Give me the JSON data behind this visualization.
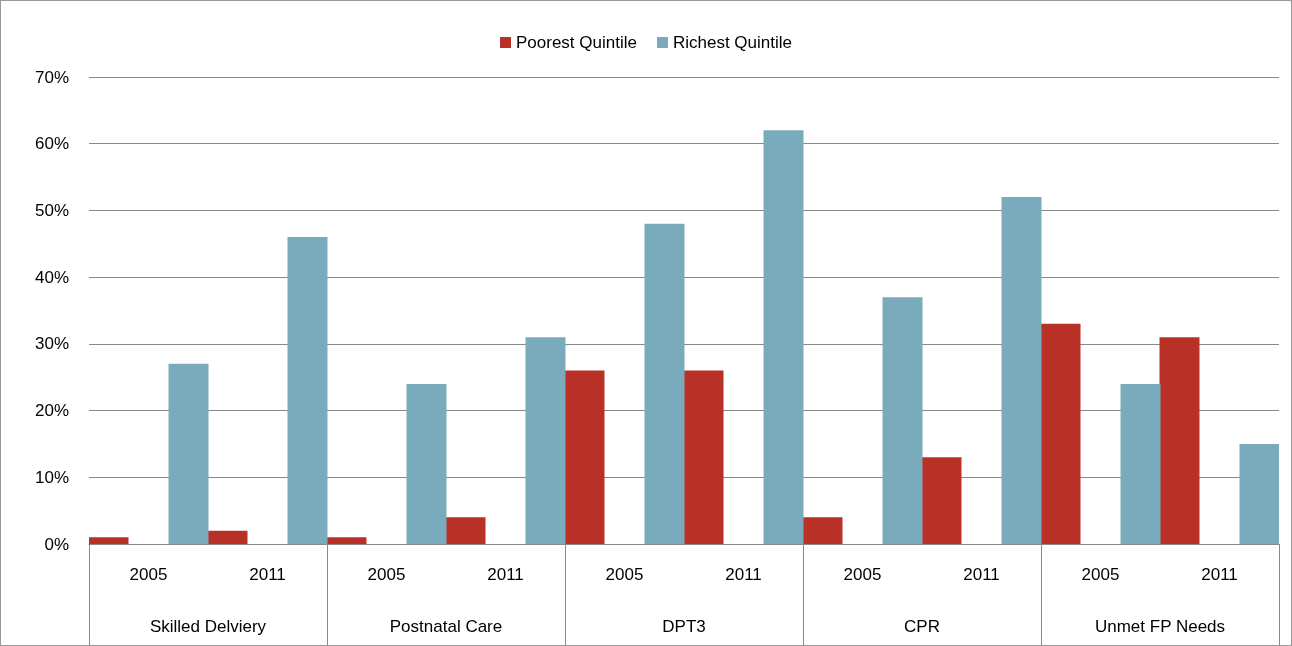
{
  "chart_data": {
    "type": "bar",
    "categories": [
      "2005",
      "2011",
      "2005",
      "2011",
      "2005",
      "2011",
      "2005",
      "2011",
      "2005",
      "2011"
    ],
    "annotations": [
      "Skilled Delviery",
      "Postnatal Care",
      "DPT3",
      "CPR",
      "Unmet FP Needs"
    ],
    "series": [
      {
        "name": "Poorest Quintile",
        "color": "#b93026",
        "values": [
          1,
          2,
          1,
          4,
          26,
          26,
          4,
          13,
          33,
          31
        ]
      },
      {
        "name": "Richest Quintile",
        "color": "#7aabbc",
        "values": [
          27,
          46,
          24,
          31,
          48,
          62,
          37,
          52,
          24,
          15
        ]
      }
    ],
    "ylim": [
      0,
      70
    ],
    "yticks": [
      {
        "value": 0,
        "label": "0%"
      },
      {
        "value": 10,
        "label": "10%"
      },
      {
        "value": 20,
        "label": "20%"
      },
      {
        "value": 30,
        "label": "30%"
      },
      {
        "value": 40,
        "label": "40%"
      },
      {
        "value": 50,
        "label": "50%"
      },
      {
        "value": 60,
        "label": "60%"
      },
      {
        "value": 70,
        "label": "70%"
      }
    ],
    "grid": "y",
    "legend": "top"
  }
}
